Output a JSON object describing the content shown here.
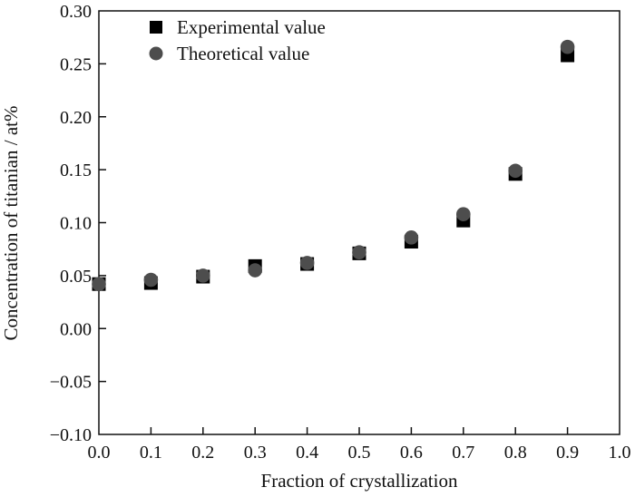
{
  "chart_data": {
    "type": "scatter",
    "title": "",
    "xlabel": "Fraction of crystallization",
    "ylabel": "Concentration of titanian / at%",
    "xlim": [
      0.0,
      1.0
    ],
    "ylim": [
      -0.1,
      0.3
    ],
    "xticks": [
      "0.0",
      "0.1",
      "0.2",
      "0.3",
      "0.4",
      "0.5",
      "0.6",
      "0.7",
      "0.8",
      "0.9",
      "1.0"
    ],
    "yticks": [
      "−0.10",
      "−0.05",
      "0.00",
      "0.05",
      "0.10",
      "0.15",
      "0.20",
      "0.25",
      "0.30"
    ],
    "xtick_values": [
      0.0,
      0.1,
      0.2,
      0.3,
      0.4,
      0.5,
      0.6,
      0.7,
      0.8,
      0.9,
      1.0
    ],
    "ytick_values": [
      -0.1,
      -0.05,
      0.0,
      0.05,
      0.1,
      0.15,
      0.2,
      0.25,
      0.3
    ],
    "grid": false,
    "legend_position": "top-left",
    "x": [
      0.0,
      0.1,
      0.2,
      0.3,
      0.4,
      0.5,
      0.6,
      0.7,
      0.8,
      0.9
    ],
    "series": [
      {
        "name": "Experimental value",
        "marker": "square",
        "color": "#000000",
        "values": [
          0.042,
          0.043,
          0.049,
          0.059,
          0.061,
          0.071,
          0.082,
          0.102,
          0.146,
          0.258
        ]
      },
      {
        "name": "Theoretical value",
        "marker": "circle",
        "color": "#4d4d4d",
        "values": [
          0.042,
          0.046,
          0.05,
          0.055,
          0.062,
          0.072,
          0.086,
          0.108,
          0.149,
          0.266
        ]
      }
    ]
  }
}
